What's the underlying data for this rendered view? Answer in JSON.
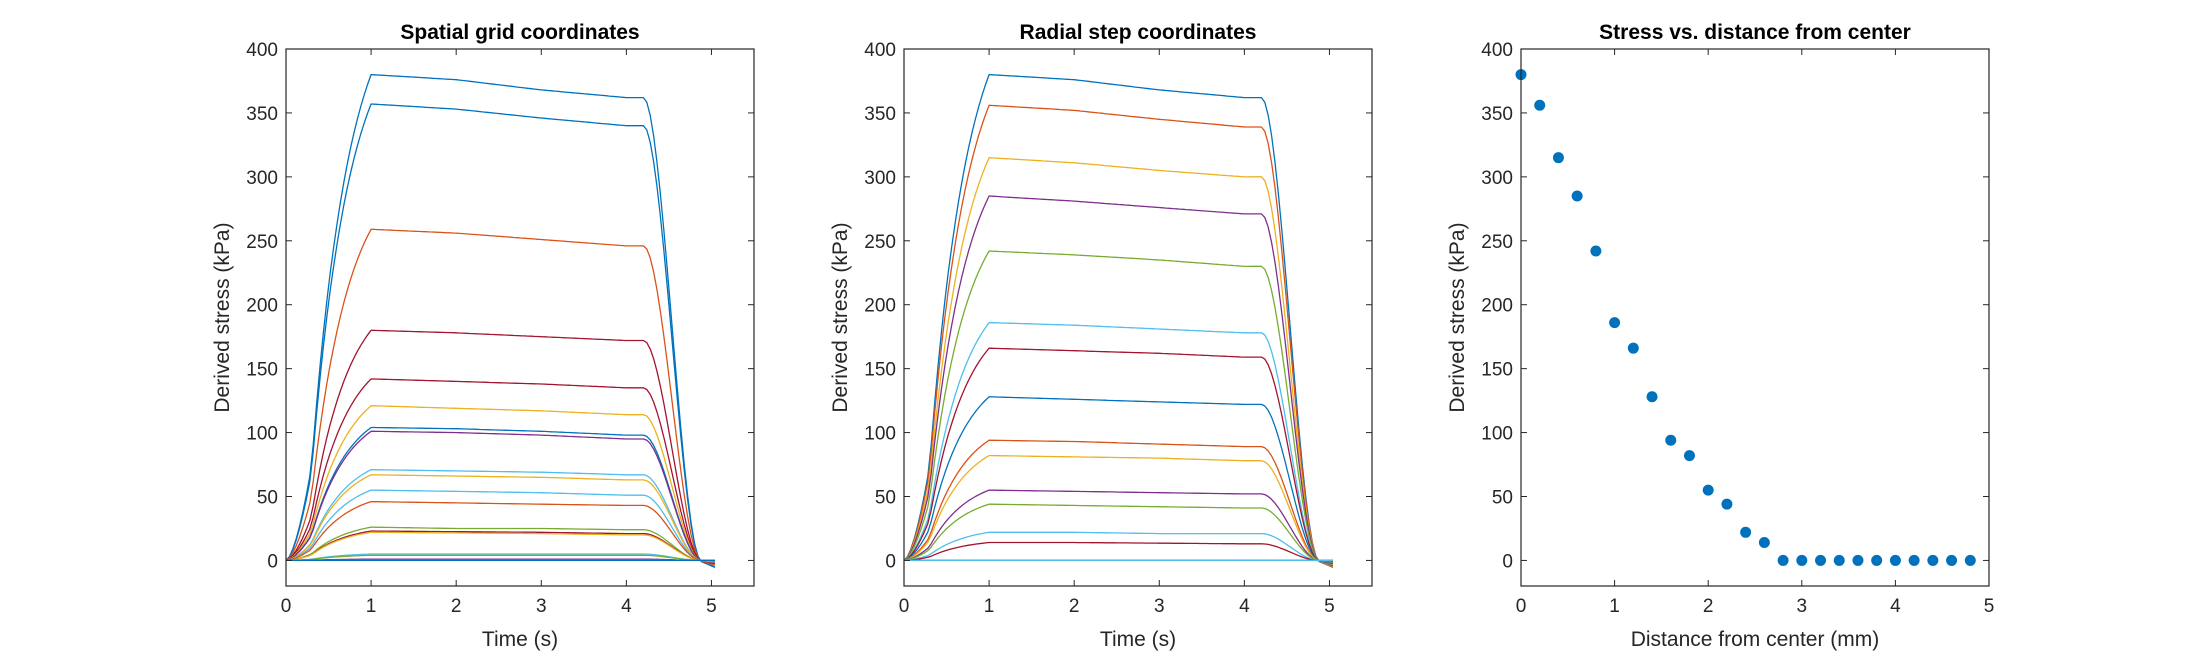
{
  "chart_data": [
    {
      "type": "line",
      "title": "Spatial grid coordinates",
      "xlabel": "Time (s)",
      "ylabel": "Derived stress (kPa)",
      "xlim": [
        0,
        5.5
      ],
      "ylim": [
        -20,
        400
      ],
      "xticks": [
        0,
        1,
        2,
        3,
        4,
        5
      ],
      "yticks": [
        0,
        50,
        100,
        150,
        200,
        250,
        300,
        350,
        400
      ],
      "grid": false,
      "series": [
        {
          "color": "#0072BD",
          "values": [
            0,
            380,
            376,
            368,
            362
          ]
        },
        {
          "color": "#0072BD",
          "values": [
            0,
            357,
            353,
            346,
            340
          ]
        },
        {
          "color": "#D95319",
          "values": [
            0,
            259,
            256,
            251,
            246
          ]
        },
        {
          "color": "#A2142F",
          "values": [
            0,
            180,
            178,
            175,
            172
          ]
        },
        {
          "color": "#A2142F",
          "values": [
            0,
            142,
            140,
            138,
            135
          ]
        },
        {
          "color": "#EDB120",
          "values": [
            0,
            121,
            119,
            117,
            114
          ]
        },
        {
          "color": "#0072BD",
          "values": [
            0,
            104,
            103,
            101,
            98
          ]
        },
        {
          "color": "#7E2F8E",
          "values": [
            0,
            101,
            100,
            98,
            95
          ]
        },
        {
          "color": "#4DBEEE",
          "values": [
            0,
            71,
            70,
            69,
            67
          ]
        },
        {
          "color": "#EDB120",
          "values": [
            0,
            67,
            66,
            65,
            63
          ]
        },
        {
          "color": "#4DBEEE",
          "values": [
            0,
            55,
            54,
            53,
            51
          ]
        },
        {
          "color": "#D95319",
          "values": [
            0,
            46,
            45,
            44,
            43
          ]
        },
        {
          "color": "#77AC30",
          "values": [
            0,
            26,
            25,
            25,
            24
          ]
        },
        {
          "color": "#A2142F",
          "values": [
            0,
            23,
            22.5,
            22,
            21
          ]
        },
        {
          "color": "#EDB120",
          "values": [
            0,
            22,
            21.5,
            21,
            20
          ]
        },
        {
          "color": "#4DBEEE",
          "values": [
            0,
            5,
            5,
            5,
            5
          ]
        },
        {
          "color": "#77AC30",
          "values": [
            0,
            4,
            4,
            4,
            4
          ]
        },
        {
          "color": "#7E2F8E",
          "values": [
            0,
            1,
            1,
            1,
            1
          ]
        },
        {
          "color": "#D95319",
          "values": [
            0,
            0.5,
            0.5,
            0.5,
            0.5
          ]
        },
        {
          "color": "#0072BD",
          "values": [
            0,
            0,
            0,
            0,
            0
          ]
        }
      ]
    },
    {
      "type": "line",
      "title": "Radial step coordinates",
      "xlabel": "Time (s)",
      "ylabel": "Derived stress (kPa)",
      "xlim": [
        0,
        5.5
      ],
      "ylim": [
        -20,
        400
      ],
      "xticks": [
        0,
        1,
        2,
        3,
        4,
        5
      ],
      "yticks": [
        0,
        50,
        100,
        150,
        200,
        250,
        300,
        350,
        400
      ],
      "grid": false,
      "series": [
        {
          "color": "#0072BD",
          "values": [
            0,
            380,
            376,
            368,
            362
          ]
        },
        {
          "color": "#D95319",
          "values": [
            0,
            356,
            352,
            345,
            339
          ]
        },
        {
          "color": "#EDB120",
          "values": [
            0,
            315,
            311,
            305,
            300
          ]
        },
        {
          "color": "#7E2F8E",
          "values": [
            0,
            285,
            281,
            276,
            271
          ]
        },
        {
          "color": "#77AC30",
          "values": [
            0,
            242,
            239,
            235,
            230
          ]
        },
        {
          "color": "#4DBEEE",
          "values": [
            0,
            186,
            184,
            181,
            178
          ]
        },
        {
          "color": "#A2142F",
          "values": [
            0,
            166,
            164,
            162,
            159
          ]
        },
        {
          "color": "#0072BD",
          "values": [
            0,
            128,
            126,
            124,
            122
          ]
        },
        {
          "color": "#D95319",
          "values": [
            0,
            94,
            93,
            91,
            89
          ]
        },
        {
          "color": "#EDB120",
          "values": [
            0,
            82,
            81,
            80,
            78
          ]
        },
        {
          "color": "#7E2F8E",
          "values": [
            0,
            55,
            54,
            53,
            52
          ]
        },
        {
          "color": "#77AC30",
          "values": [
            0,
            44,
            43,
            42,
            41
          ]
        },
        {
          "color": "#4DBEEE",
          "values": [
            0,
            22,
            22,
            21,
            21
          ]
        },
        {
          "color": "#A2142F",
          "values": [
            0,
            14,
            14,
            13.5,
            13
          ]
        },
        {
          "color": "#0072BD",
          "values": [
            0,
            0,
            0,
            0,
            0
          ]
        },
        {
          "color": "#D95319",
          "values": [
            0,
            0,
            0,
            0,
            0
          ]
        },
        {
          "color": "#EDB120",
          "values": [
            0,
            0,
            0,
            0,
            0
          ]
        },
        {
          "color": "#7E2F8E",
          "values": [
            0,
            0,
            0,
            0,
            0
          ]
        },
        {
          "color": "#77AC30",
          "values": [
            0,
            0,
            0,
            0,
            0
          ]
        },
        {
          "color": "#4DBEEE",
          "values": [
            0,
            0,
            0,
            0,
            0
          ]
        }
      ]
    },
    {
      "type": "scatter",
      "title": "Stress vs. distance from center",
      "xlabel": "Distance from center (mm)",
      "ylabel": "Derived stress (kPa)",
      "xlim": [
        0,
        5
      ],
      "ylim": [
        -20,
        400
      ],
      "xticks": [
        0,
        1,
        2,
        3,
        4,
        5
      ],
      "yticks": [
        0,
        50,
        100,
        150,
        200,
        250,
        300,
        350,
        400
      ],
      "grid": false,
      "series": [
        {
          "color": "#0072BD",
          "x": [
            0,
            0.2,
            0.4,
            0.6,
            0.8,
            1.0,
            1.2,
            1.4,
            1.6,
            1.8,
            2.0,
            2.2,
            2.4,
            2.6,
            2.8,
            3.0,
            3.2,
            3.4,
            3.6,
            3.8,
            4.0,
            4.2,
            4.4,
            4.6,
            4.8
          ],
          "y": [
            380,
            356,
            315,
            285,
            242,
            186,
            166,
            128,
            94,
            82,
            55,
            44,
            22,
            14,
            0,
            0,
            0,
            0,
            0,
            0,
            0,
            0,
            0,
            0,
            0
          ]
        }
      ]
    }
  ]
}
